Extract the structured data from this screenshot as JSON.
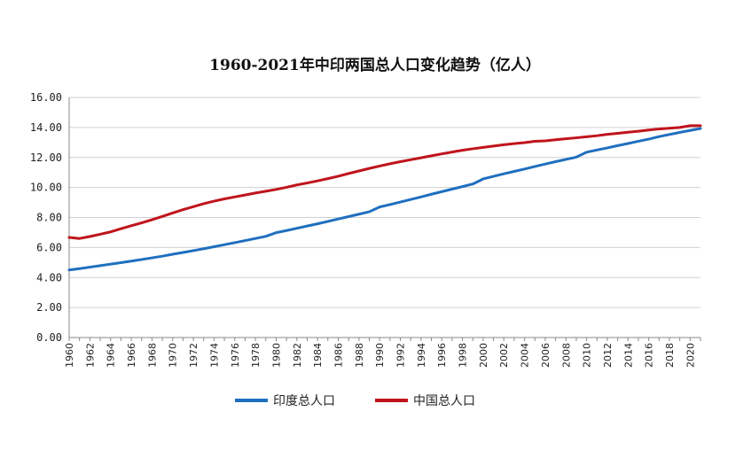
{
  "chart_data": {
    "type": "line",
    "title": "1960-2021年中印两国总人口变化趋势（亿人）",
    "xlabel": "",
    "ylabel": "",
    "ylim": [
      0,
      16
    ],
    "yticks": [
      "0.00",
      "2.00",
      "4.00",
      "6.00",
      "8.00",
      "10.00",
      "12.00",
      "14.00",
      "16.00"
    ],
    "grid": "horizontal",
    "legend_position": "bottom",
    "x": [
      1960,
      1961,
      1962,
      1963,
      1964,
      1965,
      1966,
      1967,
      1968,
      1969,
      1970,
      1971,
      1972,
      1973,
      1974,
      1975,
      1976,
      1977,
      1978,
      1979,
      1980,
      1981,
      1982,
      1983,
      1984,
      1985,
      1986,
      1987,
      1988,
      1989,
      1990,
      1991,
      1992,
      1993,
      1994,
      1995,
      1996,
      1997,
      1998,
      1999,
      2000,
      2001,
      2002,
      2003,
      2004,
      2005,
      2006,
      2007,
      2008,
      2009,
      2010,
      2011,
      2012,
      2013,
      2014,
      2015,
      2016,
      2017,
      2018,
      2019,
      2020,
      2021
    ],
    "xticks": [
      "1960",
      "1962",
      "1964",
      "1966",
      "1968",
      "1970",
      "1972",
      "1974",
      "1976",
      "1978",
      "1980",
      "1982",
      "1984",
      "1986",
      "1988",
      "1990",
      "1992",
      "1994",
      "1996",
      "1998",
      "2000",
      "2002",
      "2004",
      "2006",
      "2008",
      "2010",
      "2012",
      "2014",
      "2016",
      "2018",
      "2020"
    ],
    "series": [
      {
        "name": "印度总人口",
        "color": "#1f6fbf",
        "values": [
          4.5,
          4.59,
          4.69,
          4.79,
          4.89,
          4.99,
          5.09,
          5.2,
          5.31,
          5.42,
          5.55,
          5.67,
          5.79,
          5.92,
          6.05,
          6.19,
          6.32,
          6.46,
          6.6,
          6.74,
          6.99,
          7.13,
          7.28,
          7.43,
          7.58,
          7.74,
          7.9,
          8.06,
          8.22,
          8.38,
          8.7,
          8.86,
          9.03,
          9.2,
          9.37,
          9.55,
          9.72,
          9.89,
          10.06,
          10.23,
          10.57,
          10.74,
          10.91,
          11.07,
          11.23,
          11.4,
          11.56,
          11.72,
          11.87,
          12.02,
          12.35,
          12.5,
          12.64,
          12.79,
          12.93,
          13.08,
          13.22,
          13.39,
          13.53,
          13.67,
          13.8,
          13.93
        ]
      },
      {
        "name": "中国总人口",
        "color": "#c0141c",
        "values": [
          6.67,
          6.6,
          6.73,
          6.88,
          7.04,
          7.25,
          7.45,
          7.64,
          7.85,
          8.07,
          8.3,
          8.52,
          8.72,
          8.92,
          9.09,
          9.24,
          9.37,
          9.5,
          9.63,
          9.75,
          9.87,
          10.01,
          10.17,
          10.3,
          10.44,
          10.59,
          10.75,
          10.93,
          11.1,
          11.27,
          11.43,
          11.58,
          11.72,
          11.85,
          11.98,
          12.11,
          12.24,
          12.36,
          12.48,
          12.58,
          12.67,
          12.76,
          12.85,
          12.92,
          12.99,
          13.08,
          13.11,
          13.18,
          13.25,
          13.31,
          13.38,
          13.45,
          13.54,
          13.61,
          13.68,
          13.75,
          13.83,
          13.9,
          13.95,
          14.0,
          14.12,
          14.12
        ]
      }
    ]
  }
}
